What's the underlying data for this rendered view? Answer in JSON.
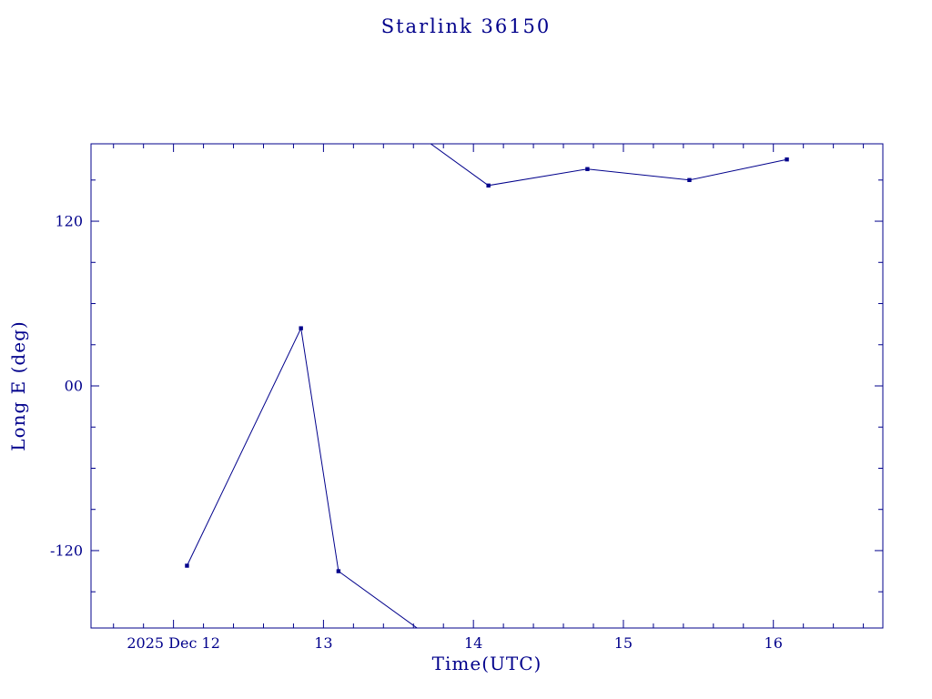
{
  "chart_data": {
    "type": "line",
    "title": "Starlink 36150",
    "xlabel": "Time(UTC)",
    "ylabel": "Long E (deg)",
    "xlim": [
      11.45,
      16.73
    ],
    "ylim": [
      -176.4,
      176.4
    ],
    "x_ticks": [
      {
        "value": 12,
        "label": "2025 Dec 12"
      },
      {
        "value": 13,
        "label": "13"
      },
      {
        "value": 14,
        "label": "14"
      },
      {
        "value": 15,
        "label": "15"
      },
      {
        "value": 16,
        "label": "16"
      }
    ],
    "y_ticks": [
      {
        "value": -120,
        "label": "-120"
      },
      {
        "value": 0,
        "label": "00"
      },
      {
        "value": 120,
        "label": "120"
      }
    ],
    "x_minor_step": 0.2,
    "y_minor_step": 30,
    "wrap_threshold": 180,
    "wrap_period": 360,
    "series": [
      {
        "name": "longitude-track",
        "marker": "square",
        "x": [
          12.09,
          12.85,
          13.1,
          14.1,
          14.76,
          15.44,
          16.09
        ],
        "y": [
          -131,
          42,
          -135,
          146,
          158,
          150,
          165
        ]
      }
    ],
    "colors": {
      "line": "#00008B",
      "frame": "#00008B",
      "text": "#00008B",
      "background": "#ffffff"
    },
    "grid": false,
    "legend": null
  }
}
